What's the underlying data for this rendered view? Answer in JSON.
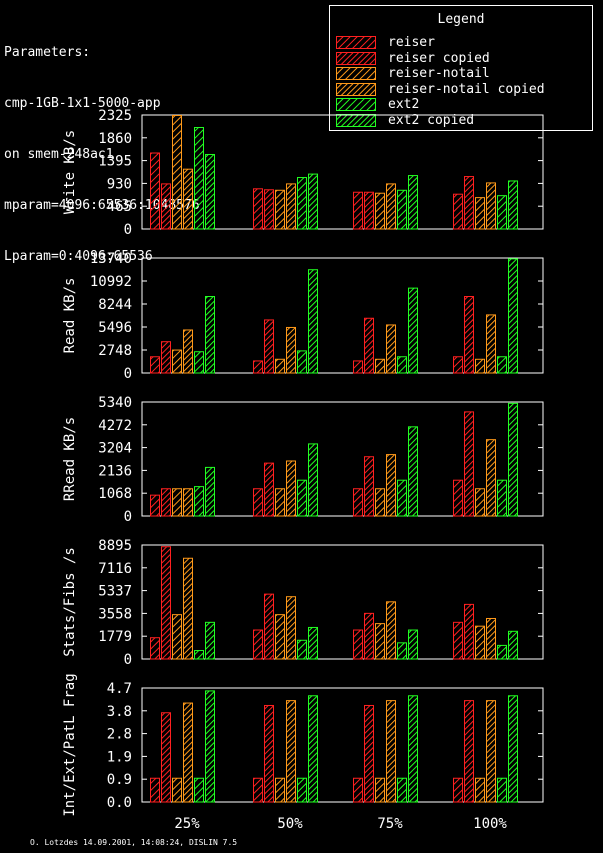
{
  "header": {
    "lines": [
      "Parameters:",
      "cmp-1GB-1x1-5000-app",
      "on smem-248ac1",
      "mparam=4096:65536:1048576",
      "Lparam=0:4096:65536"
    ]
  },
  "legend": {
    "title": "Legend",
    "items": [
      {
        "label": "reiser",
        "color": "#ff2020"
      },
      {
        "label": "reiser copied",
        "color": "#ff2020"
      },
      {
        "label": "reiser-notail",
        "color": "#ff9a1a"
      },
      {
        "label": "reiser-notail copied",
        "color": "#ff9a1a"
      },
      {
        "label": "ext2",
        "color": "#22ff22"
      },
      {
        "label": "ext2 copied",
        "color": "#22ff22"
      }
    ]
  },
  "footer": "O. Lotzdes 14.09.2001, 14:08:24, DISLIN 7.5",
  "chart_data": [
    {
      "type": "bar",
      "ylabel": "Write KB/s",
      "yticks": [
        "0",
        "465",
        "930",
        "1395",
        "1860",
        "2325"
      ],
      "ylim": [
        0,
        2325
      ],
      "categories": [
        "25%",
        "50%",
        "75%",
        "100%"
      ],
      "series": [
        {
          "name": "reiser",
          "values": [
            1560,
            830,
            760,
            720
          ]
        },
        {
          "name": "reiser copied",
          "values": [
            930,
            810,
            760,
            1080
          ]
        },
        {
          "name": "reiser-notail",
          "values": [
            2340,
            800,
            740,
            650
          ]
        },
        {
          "name": "reiser-notail copied",
          "values": [
            1230,
            930,
            930,
            950
          ]
        },
        {
          "name": "ext2",
          "values": [
            2080,
            1060,
            800,
            690
          ]
        },
        {
          "name": "ext2 copied",
          "values": [
            1530,
            1130,
            1100,
            990
          ]
        }
      ]
    },
    {
      "type": "bar",
      "ylabel": "Read KB/s",
      "yticks": [
        "0",
        "2748",
        "5496",
        "8244",
        "10992",
        "13740"
      ],
      "ylim": [
        0,
        13740
      ],
      "categories": [
        "25%",
        "50%",
        "75%",
        "100%"
      ],
      "series": [
        {
          "name": "reiser",
          "values": [
            2000,
            1500,
            1500,
            2000
          ]
        },
        {
          "name": "reiser copied",
          "values": [
            3800,
            6400,
            6600,
            9200
          ]
        },
        {
          "name": "reiser-notail",
          "values": [
            2800,
            1700,
            1700,
            1700
          ]
        },
        {
          "name": "reiser-notail copied",
          "values": [
            5200,
            5500,
            5800,
            7000
          ]
        },
        {
          "name": "ext2",
          "values": [
            2600,
            2700,
            2000,
            2000
          ]
        },
        {
          "name": "ext2 copied",
          "values": [
            9200,
            12400,
            10200,
            13700
          ]
        }
      ]
    },
    {
      "type": "bar",
      "ylabel": "RRead KB/s",
      "yticks": [
        "0",
        "1068",
        "2136",
        "3204",
        "4272",
        "5340"
      ],
      "ylim": [
        0,
        5340
      ],
      "categories": [
        "25%",
        "50%",
        "75%",
        "100%"
      ],
      "series": [
        {
          "name": "reiser",
          "values": [
            1000,
            1300,
            1300,
            1700
          ]
        },
        {
          "name": "reiser copied",
          "values": [
            1300,
            2500,
            2800,
            4900
          ]
        },
        {
          "name": "reiser-notail",
          "values": [
            1300,
            1300,
            1300,
            1300
          ]
        },
        {
          "name": "reiser-notail copied",
          "values": [
            1300,
            2600,
            2900,
            3600
          ]
        },
        {
          "name": "ext2",
          "values": [
            1400,
            1700,
            1700,
            1700
          ]
        },
        {
          "name": "ext2 copied",
          "values": [
            2300,
            3400,
            4200,
            5300
          ]
        }
      ]
    },
    {
      "type": "bar",
      "ylabel": "Stats/Fibs /s",
      "yticks": [
        "0",
        "1779",
        "3558",
        "5337",
        "7116",
        "8895"
      ],
      "ylim": [
        0,
        8895
      ],
      "categories": [
        "25%",
        "50%",
        "75%",
        "100%"
      ],
      "series": [
        {
          "name": "reiser",
          "values": [
            1700,
            2300,
            2300,
            2900
          ]
        },
        {
          "name": "reiser copied",
          "values": [
            8800,
            5100,
            3600,
            4300
          ]
        },
        {
          "name": "reiser-notail",
          "values": [
            3500,
            3500,
            2800,
            2600
          ]
        },
        {
          "name": "reiser-notail copied",
          "values": [
            7900,
            4900,
            4500,
            3200
          ]
        },
        {
          "name": "ext2",
          "values": [
            700,
            1500,
            1300,
            1100
          ]
        },
        {
          "name": "ext2 copied",
          "values": [
            2900,
            2500,
            2300,
            2200
          ]
        }
      ]
    },
    {
      "type": "bar",
      "ylabel": "Int/Ext/PatL Frag",
      "yticks": [
        "0.0",
        "0.9",
        "1.9",
        "2.8",
        "3.8",
        "4.7"
      ],
      "ylim": [
        0,
        4.7
      ],
      "categories": [
        "25%",
        "50%",
        "75%",
        "100%"
      ],
      "xticks": [
        "25%",
        "50%",
        "75%",
        "100%"
      ],
      "series": [
        {
          "name": "reiser",
          "values": [
            1.0,
            1.0,
            1.0,
            1.0
          ]
        },
        {
          "name": "reiser copied",
          "values": [
            3.7,
            4.0,
            4.0,
            4.2
          ]
        },
        {
          "name": "reiser-notail",
          "values": [
            1.0,
            1.0,
            1.0,
            1.0
          ]
        },
        {
          "name": "reiser-notail copied",
          "values": [
            4.1,
            4.2,
            4.2,
            4.2
          ]
        },
        {
          "name": "ext2",
          "values": [
            1.0,
            1.0,
            1.0,
            1.0
          ]
        },
        {
          "name": "ext2 copied",
          "values": [
            4.6,
            4.4,
            4.4,
            4.4
          ]
        }
      ]
    }
  ]
}
